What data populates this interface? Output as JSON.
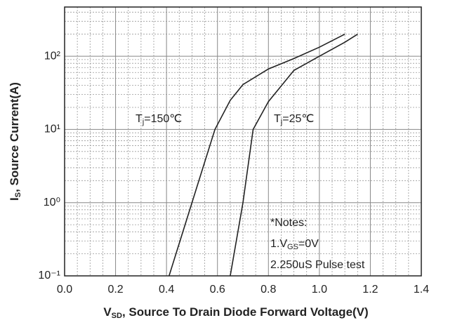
{
  "chart_data": {
    "type": "line",
    "x_label": {
      "main": "V",
      "sub": "SD",
      "rest": ", Source To Drain Diode Forward Voltage(V)"
    },
    "y_label": {
      "main": "I",
      "sub": "S",
      "rest": ", Source Current(A)"
    },
    "xlim": [
      0,
      1.4
    ],
    "xticks": [
      {
        "value": 0,
        "label": "0.0"
      },
      0.2,
      0.4,
      0.6,
      0.8,
      {
        "value": 1,
        "label": "1.0"
      },
      1.2,
      1.4
    ],
    "ylim": [
      0.1,
      470
    ],
    "yticks": [
      {
        "value": 0.1,
        "label": "10⁻¹"
      },
      {
        "value": 1,
        "label": "10⁰"
      },
      {
        "value": 10,
        "label": "10¹"
      },
      {
        "value": 100,
        "label": "10²"
      }
    ],
    "log_y": true,
    "grid": true,
    "minor_grid": true,
    "series": [
      {
        "name": {
          "main": "T",
          "sub": "j",
          "rest": "=150℃"
        },
        "color": "#222222",
        "x": [
          0.41,
          0.5,
          0.59,
          0.65,
          0.7,
          0.8,
          0.9,
          1.0,
          1.1
        ],
        "values": [
          0.1,
          1,
          10,
          25,
          41,
          67,
          93,
          133,
          200
        ]
      },
      {
        "name": {
          "main": "T",
          "sub": "j",
          "rest": "=25℃"
        },
        "color": "#222222",
        "x": [
          0.65,
          0.7,
          0.74,
          0.8,
          0.9,
          1.0,
          1.1,
          1.15
        ],
        "values": [
          0.1,
          1,
          10,
          24,
          64,
          100,
          155,
          200
        ]
      }
    ],
    "notes": [
      {
        "main": "*Notes:"
      },
      {
        "main": "1.V",
        "sub": "GS",
        "rest": "=0V"
      },
      {
        "main": "2.250uS Pulse test"
      }
    ]
  }
}
